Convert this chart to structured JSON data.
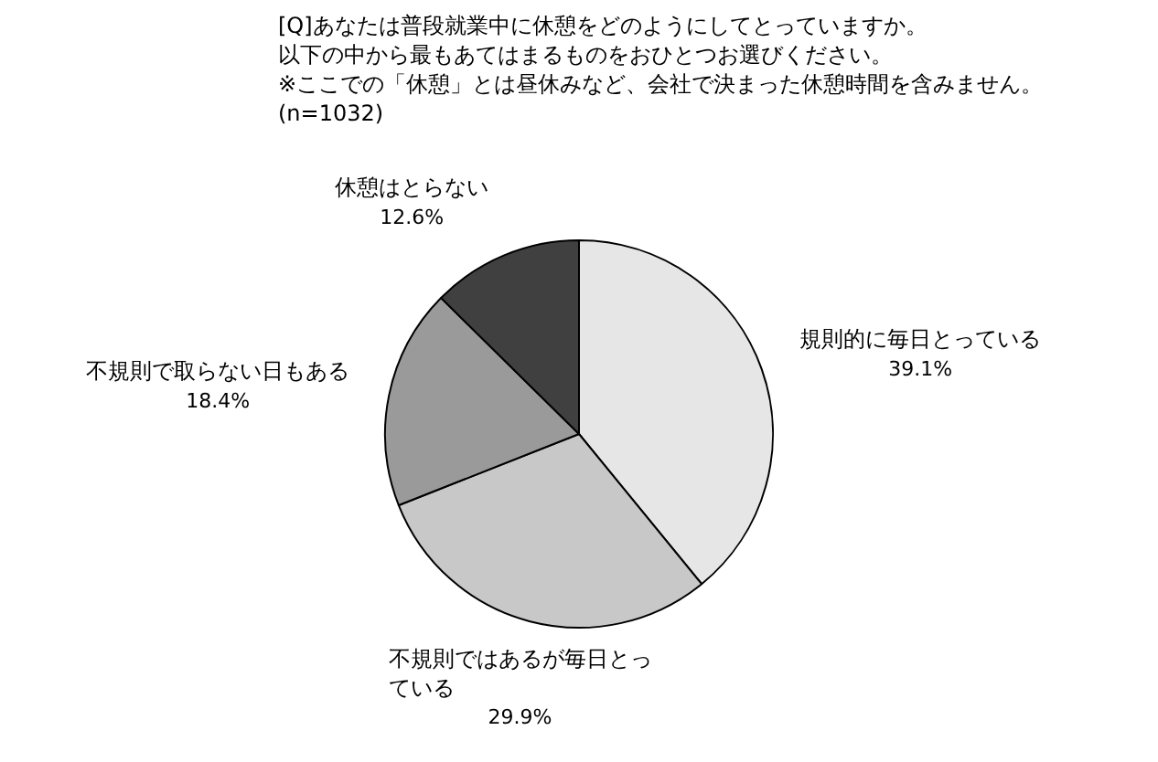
{
  "chart_data": {
    "type": "pie",
    "title": "[Q]あなたは普段就業中に休憩をどのようにしてとっていますか。",
    "subtitle": "以下の中から最もあてはまるものをおひとつお選びください。",
    "annotations": [
      "※ここでの「休憩」とは昼休みなど、会社で決まった休憩時間を含みません。",
      "(n=1032)"
    ],
    "categories": [
      "規則的に毎日とっている",
      "不規則ではあるが毎日とっている",
      "不規則で取らない日もある",
      "休憩はとらない"
    ],
    "values": [
      39.1,
      29.9,
      18.4,
      12.6
    ],
    "value_labels": [
      "39.1%",
      "29.9%",
      "18.4%",
      "12.6%"
    ],
    "colors": [
      "#e6e6e6",
      "#c8c8c8",
      "#9a9a9a",
      "#404040"
    ],
    "legend": false
  }
}
